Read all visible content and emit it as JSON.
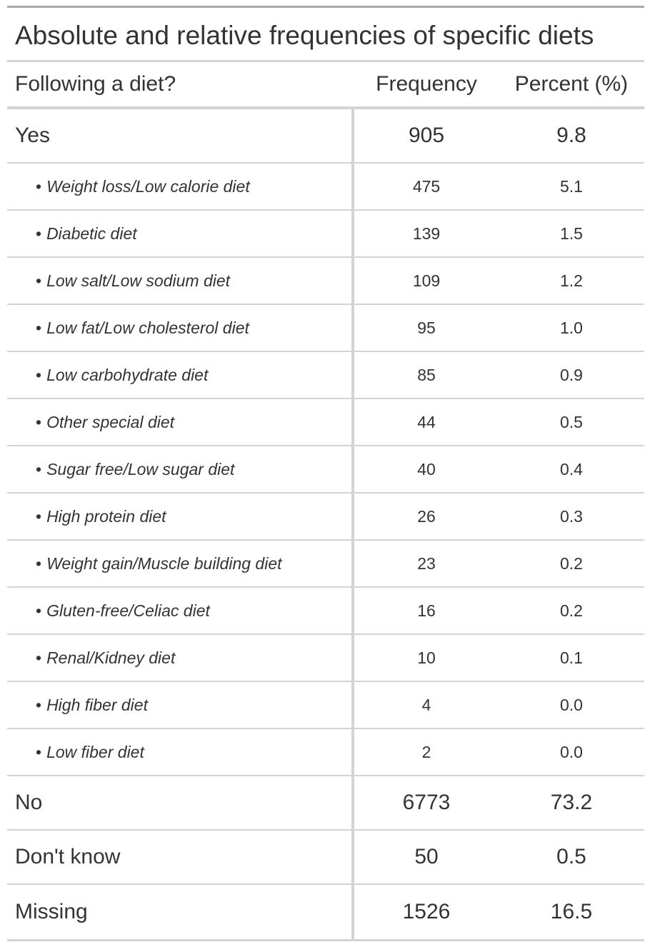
{
  "title": "Absolute and relative frequencies of specific diets",
  "headers": {
    "label": "Following a diet?",
    "frequency": "Frequency",
    "percent": "Percent (%)"
  },
  "bullet": "•",
  "rows": [
    {
      "label": "Yes",
      "frequency": "905",
      "percent": "9.8",
      "level": "main"
    },
    {
      "label": "Weight loss/Low calorie diet",
      "frequency": "475",
      "percent": "5.1",
      "level": "sub"
    },
    {
      "label": "Diabetic diet",
      "frequency": "139",
      "percent": "1.5",
      "level": "sub"
    },
    {
      "label": "Low salt/Low sodium diet",
      "frequency": "109",
      "percent": "1.2",
      "level": "sub"
    },
    {
      "label": "Low fat/Low cholesterol diet",
      "frequency": "95",
      "percent": "1.0",
      "level": "sub"
    },
    {
      "label": "Low carbohydrate diet",
      "frequency": "85",
      "percent": "0.9",
      "level": "sub"
    },
    {
      "label": "Other special diet",
      "frequency": "44",
      "percent": "0.5",
      "level": "sub"
    },
    {
      "label": "Sugar free/Low sugar diet",
      "frequency": "40",
      "percent": "0.4",
      "level": "sub"
    },
    {
      "label": "High protein diet",
      "frequency": "26",
      "percent": "0.3",
      "level": "sub"
    },
    {
      "label": "Weight gain/Muscle building diet",
      "frequency": "23",
      "percent": "0.2",
      "level": "sub"
    },
    {
      "label": "Gluten-free/Celiac diet",
      "frequency": "16",
      "percent": "0.2",
      "level": "sub"
    },
    {
      "label": "Renal/Kidney diet",
      "frequency": "10",
      "percent": "0.1",
      "level": "sub"
    },
    {
      "label": "High fiber diet",
      "frequency": "4",
      "percent": "0.0",
      "level": "sub"
    },
    {
      "label": "Low fiber diet",
      "frequency": "2",
      "percent": "0.0",
      "level": "sub"
    },
    {
      "label": "No",
      "frequency": "6773",
      "percent": "73.2",
      "level": "main"
    },
    {
      "label": "Don't know",
      "frequency": "50",
      "percent": "0.5",
      "level": "main"
    },
    {
      "label": "Missing",
      "frequency": "1526",
      "percent": "16.5",
      "level": "main"
    }
  ],
  "colors": {
    "text": "#333333",
    "top_rule": "#a8a8a8",
    "rules": "#d3d3d3"
  }
}
